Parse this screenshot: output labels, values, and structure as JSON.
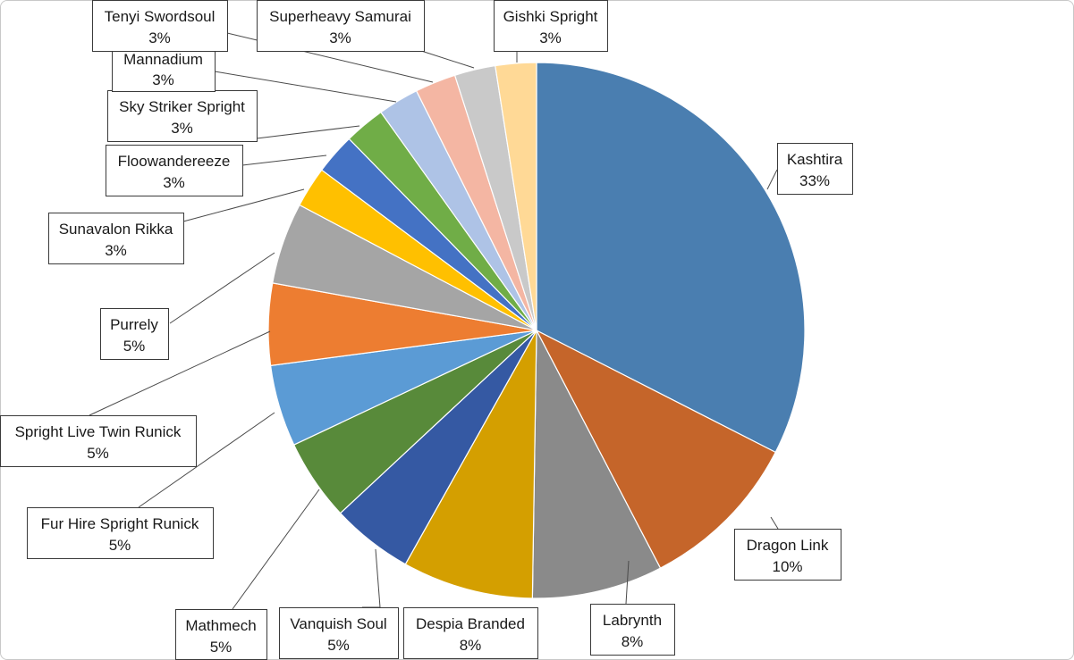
{
  "chart_data": {
    "type": "pie",
    "title": "",
    "slices": [
      {
        "label": "Kashtira",
        "value": 33,
        "pct_label": "33%",
        "color": "#4a7eb0"
      },
      {
        "label": "Dragon Link",
        "value": 10,
        "pct_label": "10%",
        "color": "#c5652a"
      },
      {
        "label": "Labrynth",
        "value": 8,
        "pct_label": "8%",
        "color": "#8a8a8a"
      },
      {
        "label": "Despia Branded",
        "value": 8,
        "pct_label": "8%",
        "color": "#d49f00"
      },
      {
        "label": "Vanquish Soul",
        "value": 5,
        "pct_label": "5%",
        "color": "#3559a3"
      },
      {
        "label": "Mathmech",
        "value": 5,
        "pct_label": "5%",
        "color": "#588a3a"
      },
      {
        "label": "Fur Hire Spright Runick",
        "value": 5,
        "pct_label": "5%",
        "color": "#5b9bd5"
      },
      {
        "label": "Spright Live Twin Runick",
        "value": 5,
        "pct_label": "5%",
        "color": "#ed7d31"
      },
      {
        "label": "Purrely",
        "value": 5,
        "pct_label": "5%",
        "color": "#a5a5a5"
      },
      {
        "label": "Sunavalon Rikka",
        "value": 2.5,
        "pct_label": "3%",
        "color": "#ffc000"
      },
      {
        "label": "Floowandereeze",
        "value": 2.5,
        "pct_label": "3%",
        "color": "#4472c4"
      },
      {
        "label": "Sky Striker Spright",
        "value": 2.5,
        "pct_label": "3%",
        "color": "#70ad47"
      },
      {
        "label": "Mannadium",
        "value": 2.5,
        "pct_label": "3%",
        "color": "#aec3e6"
      },
      {
        "label": "Tenyi Swordsoul",
        "value": 2.5,
        "pct_label": "3%",
        "color": "#f4b6a3"
      },
      {
        "label": "Superheavy Samurai",
        "value": 2.5,
        "pct_label": "3%",
        "color": "#c9c9c9"
      },
      {
        "label": "Gishki Spright",
        "value": 2.5,
        "pct_label": "3%",
        "color": "#ffd996"
      }
    ],
    "start_angle_deg": 0,
    "direction": "clockwise",
    "legend": "none",
    "data_labels": "callout-boxes"
  }
}
